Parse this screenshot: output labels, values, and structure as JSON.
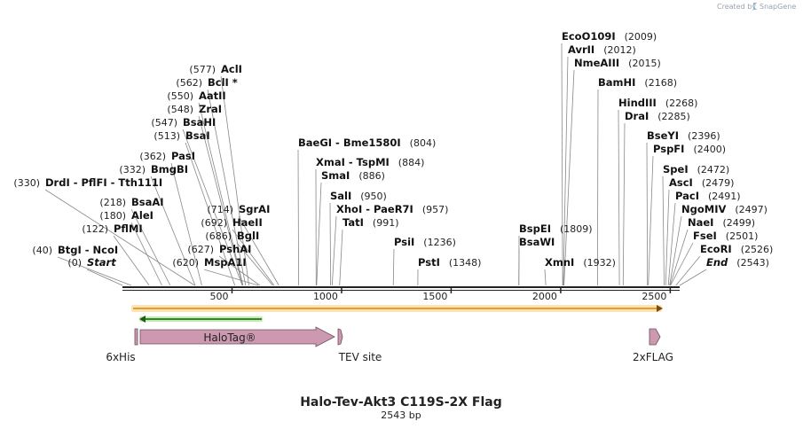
{
  "credit": "Created by",
  "brand": "SnapGene",
  "title": "Halo-Tev-Akt3 C119S-2X Flag",
  "length_label": "2543 bp",
  "length": 2543,
  "ticks": [
    {
      "value": 500,
      "label": "500"
    },
    {
      "value": 1000,
      "label": "1000"
    },
    {
      "value": 1500,
      "label": "1500"
    },
    {
      "value": 2000,
      "label": "2000"
    },
    {
      "value": 2500,
      "label": "2500"
    }
  ],
  "sites": [
    {
      "label": "AclI",
      "pos": "(577)",
      "bp": 577
    },
    {
      "label": "BclI *",
      "pos": "(562)",
      "bp": 562
    },
    {
      "label": "AatII",
      "pos": "(550)",
      "bp": 550
    },
    {
      "label": "ZraI",
      "pos": "(548)",
      "bp": 548
    },
    {
      "label": "BsaHI",
      "pos": "(547)",
      "bp": 547
    },
    {
      "label": "BsaI",
      "pos": "(513)",
      "bp": 513
    },
    {
      "label": "PasI",
      "pos": "(362)",
      "bp": 362
    },
    {
      "label": "BmgBI",
      "pos": "(332)",
      "bp": 332
    },
    {
      "label": "DrdI  -  PflFI  -  Tth111I",
      "pos": "(330)",
      "bp": 330
    },
    {
      "label": "BsaAI",
      "pos": "(218)",
      "bp": 218
    },
    {
      "label": "AleI",
      "pos": "(180)",
      "bp": 180
    },
    {
      "label": "PflMI",
      "pos": "(122)",
      "bp": 122
    },
    {
      "label": "BtgI  -  NcoI",
      "pos": "(40)",
      "bp": 40
    },
    {
      "label": "Start",
      "pos": "(0)",
      "bp": 0,
      "italic": true
    },
    {
      "label": "SgrAI",
      "pos": "(714)",
      "bp": 714
    },
    {
      "label": "HaeII",
      "pos": "(692)",
      "bp": 692
    },
    {
      "label": "BglI",
      "pos": "(686)",
      "bp": 686
    },
    {
      "label": "PshAI",
      "pos": "(627)",
      "bp": 627
    },
    {
      "label": "MspA1I",
      "pos": "(620)",
      "bp": 620
    },
    {
      "label": "BaeGI  -  Bme1580I",
      "pos": "(804)",
      "bp": 804
    },
    {
      "label": "XmaI  -  TspMI",
      "pos": "(884)",
      "bp": 884
    },
    {
      "label": "SmaI",
      "pos": "(886)",
      "bp": 886
    },
    {
      "label": "SalI",
      "pos": "(950)",
      "bp": 950
    },
    {
      "label": "XhoI  -  PaeR7I",
      "pos": "(957)",
      "bp": 957
    },
    {
      "label": "TatI",
      "pos": "(991)",
      "bp": 991
    },
    {
      "label": "PsiI",
      "pos": "(1236)",
      "bp": 1236
    },
    {
      "label": "PstI",
      "pos": "(1348)",
      "bp": 1348
    },
    {
      "label": "BspEI",
      "pos": "(1809)",
      "bp": 1809
    },
    {
      "label": "BsaWI",
      "pos": "",
      "bp": 1809
    },
    {
      "label": "XmnI",
      "pos": "(1932)",
      "bp": 1932
    },
    {
      "label": "EcoO109I",
      "pos": "(2009)",
      "bp": 2009
    },
    {
      "label": "AvrII",
      "pos": "(2012)",
      "bp": 2012
    },
    {
      "label": "NmeAIII",
      "pos": "(2015)",
      "bp": 2015
    },
    {
      "label": "BamHI",
      "pos": "(2168)",
      "bp": 2168
    },
    {
      "label": "HindIII",
      "pos": "(2268)",
      "bp": 2268
    },
    {
      "label": "DraI",
      "pos": "(2285)",
      "bp": 2285
    },
    {
      "label": "BseYI",
      "pos": "(2396)",
      "bp": 2396
    },
    {
      "label": "PspFI",
      "pos": "(2400)",
      "bp": 2400
    },
    {
      "label": "SpeI",
      "pos": "(2472)",
      "bp": 2472
    },
    {
      "label": "AscI",
      "pos": "(2479)",
      "bp": 2479
    },
    {
      "label": "PacI",
      "pos": "(2491)",
      "bp": 2491
    },
    {
      "label": "NgoMIV",
      "pos": "(2497)",
      "bp": 2497
    },
    {
      "label": "NaeI",
      "pos": "(2499)",
      "bp": 2499
    },
    {
      "label": "FseI",
      "pos": "(2501)",
      "bp": 2501
    },
    {
      "label": "EcoRI",
      "pos": "(2526)",
      "bp": 2526
    },
    {
      "label": "End",
      "pos": "(2543)",
      "bp": 2543,
      "italic": true
    }
  ],
  "orf": {
    "start": 0,
    "end": 2543,
    "color": "#f2a33a"
  },
  "primer": {
    "start": 0,
    "end": 600,
    "color": "#3f9b2f"
  },
  "features": [
    {
      "label": "6xHis",
      "start": 0,
      "end": 18,
      "color": "#cc99b1"
    },
    {
      "label": "HaloTag®",
      "start": 20,
      "end": 900,
      "color": "#cc99b1"
    },
    {
      "label": "TEV site",
      "start": 930,
      "end": 951,
      "color": "#cc99b1"
    },
    {
      "label": "2xFLAG",
      "start": 2450,
      "end": 2500,
      "color": "#cc99b1"
    }
  ],
  "colors": {
    "backbone": "#222222",
    "leader": "#8c8c8c"
  }
}
